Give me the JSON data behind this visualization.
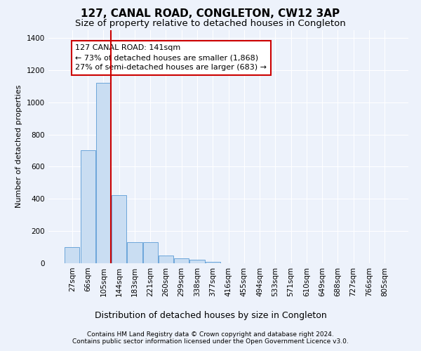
{
  "title": "127, CANAL ROAD, CONGLETON, CW12 3AP",
  "subtitle": "Size of property relative to detached houses in Congleton",
  "xlabel": "Distribution of detached houses by size in Congleton",
  "ylabel": "Number of detached properties",
  "categories": [
    "27sqm",
    "66sqm",
    "105sqm",
    "144sqm",
    "183sqm",
    "221sqm",
    "260sqm",
    "299sqm",
    "338sqm",
    "377sqm",
    "416sqm",
    "455sqm",
    "494sqm",
    "533sqm",
    "571sqm",
    "610sqm",
    "649sqm",
    "688sqm",
    "727sqm",
    "766sqm",
    "805sqm"
  ],
  "values": [
    100,
    700,
    1120,
    425,
    130,
    130,
    50,
    30,
    20,
    10,
    0,
    0,
    0,
    0,
    0,
    0,
    0,
    0,
    0,
    0,
    0
  ],
  "bar_color": "#c9ddf2",
  "bar_edge_color": "#5b9bd5",
  "highlight_line_color": "#cc0000",
  "annotation_text": "127 CANAL ROAD: 141sqm\n← 73% of detached houses are smaller (1,868)\n27% of semi-detached houses are larger (683) →",
  "annotation_box_edge_color": "#cc0000",
  "ylim": [
    0,
    1450
  ],
  "yticks": [
    0,
    200,
    400,
    600,
    800,
    1000,
    1200,
    1400
  ],
  "footer_line1": "Contains HM Land Registry data © Crown copyright and database right 2024.",
  "footer_line2": "Contains public sector information licensed under the Open Government Licence v3.0.",
  "bg_color": "#edf2fb",
  "plot_bg_color": "#edf2fb",
  "grid_color": "#ffffff",
  "title_fontsize": 11,
  "subtitle_fontsize": 9.5,
  "ylabel_fontsize": 8,
  "xlabel_fontsize": 9,
  "tick_fontsize": 7.5,
  "annotation_fontsize": 8,
  "footer_fontsize": 6.5
}
